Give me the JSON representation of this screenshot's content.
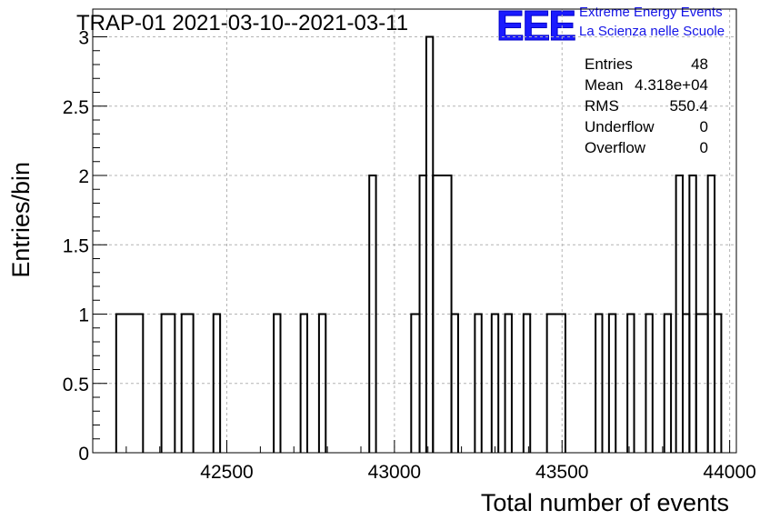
{
  "title": "TRAP-01 2021-03-10--2021-03-11",
  "logo": {
    "mark": "EEE",
    "line1": "Extreme Energy Events",
    "line2": "La Scienza nelle Scuole",
    "color": "#1a1aff"
  },
  "stats": [
    {
      "label": "Entries",
      "value": "48"
    },
    {
      "label": "Mean",
      "value": "4.318e+04"
    },
    {
      "label": "RMS",
      "value": "550.4"
    },
    {
      "label": "Underflow",
      "value": "0"
    },
    {
      "label": "Overflow",
      "value": "0"
    }
  ],
  "chart_data": {
    "type": "histogram",
    "xlabel": "Total number of events",
    "ylabel": "Entries/bin",
    "xlim": [
      42100,
      44020
    ],
    "ylim": [
      0,
      3.2
    ],
    "x_ticks": [
      42500,
      43000,
      43500,
      44000
    ],
    "y_ticks": [
      0,
      0.5,
      1,
      1.5,
      2,
      2.5,
      3
    ],
    "y_tick_labels": [
      "0",
      "0.5",
      "1",
      "1.5",
      "2",
      "2.5",
      "3"
    ],
    "grid": true,
    "bin_width": 20,
    "bins": [
      {
        "x0": 42170,
        "x1": 42250,
        "count": 1
      },
      {
        "x0": 42305,
        "x1": 42345,
        "count": 1
      },
      {
        "x0": 42365,
        "x1": 42400,
        "count": 1
      },
      {
        "x0": 42460,
        "x1": 42480,
        "count": 1
      },
      {
        "x0": 42640,
        "x1": 42660,
        "count": 1
      },
      {
        "x0": 42720,
        "x1": 42740,
        "count": 1
      },
      {
        "x0": 42775,
        "x1": 42795,
        "count": 1
      },
      {
        "x0": 42925,
        "x1": 42945,
        "count": 2
      },
      {
        "x0": 43050,
        "x1": 43075,
        "count": 1
      },
      {
        "x0": 43075,
        "x1": 43095,
        "count": 2
      },
      {
        "x0": 43095,
        "x1": 43115,
        "count": 3
      },
      {
        "x0": 43115,
        "x1": 43170,
        "count": 2
      },
      {
        "x0": 43170,
        "x1": 43190,
        "count": 1
      },
      {
        "x0": 43240,
        "x1": 43260,
        "count": 1
      },
      {
        "x0": 43290,
        "x1": 43310,
        "count": 1
      },
      {
        "x0": 43330,
        "x1": 43350,
        "count": 1
      },
      {
        "x0": 43385,
        "x1": 43405,
        "count": 1
      },
      {
        "x0": 43455,
        "x1": 43510,
        "count": 1
      },
      {
        "x0": 43600,
        "x1": 43620,
        "count": 1
      },
      {
        "x0": 43640,
        "x1": 43660,
        "count": 1
      },
      {
        "x0": 43695,
        "x1": 43715,
        "count": 1
      },
      {
        "x0": 43750,
        "x1": 43770,
        "count": 1
      },
      {
        "x0": 43805,
        "x1": 43825,
        "count": 1
      },
      {
        "x0": 43840,
        "x1": 43860,
        "count": 2
      },
      {
        "x0": 43860,
        "x1": 43880,
        "count": 1
      },
      {
        "x0": 43880,
        "x1": 43900,
        "count": 2
      },
      {
        "x0": 43900,
        "x1": 43935,
        "count": 1
      },
      {
        "x0": 43935,
        "x1": 43955,
        "count": 2
      },
      {
        "x0": 43955,
        "x1": 43975,
        "count": 1
      }
    ]
  }
}
